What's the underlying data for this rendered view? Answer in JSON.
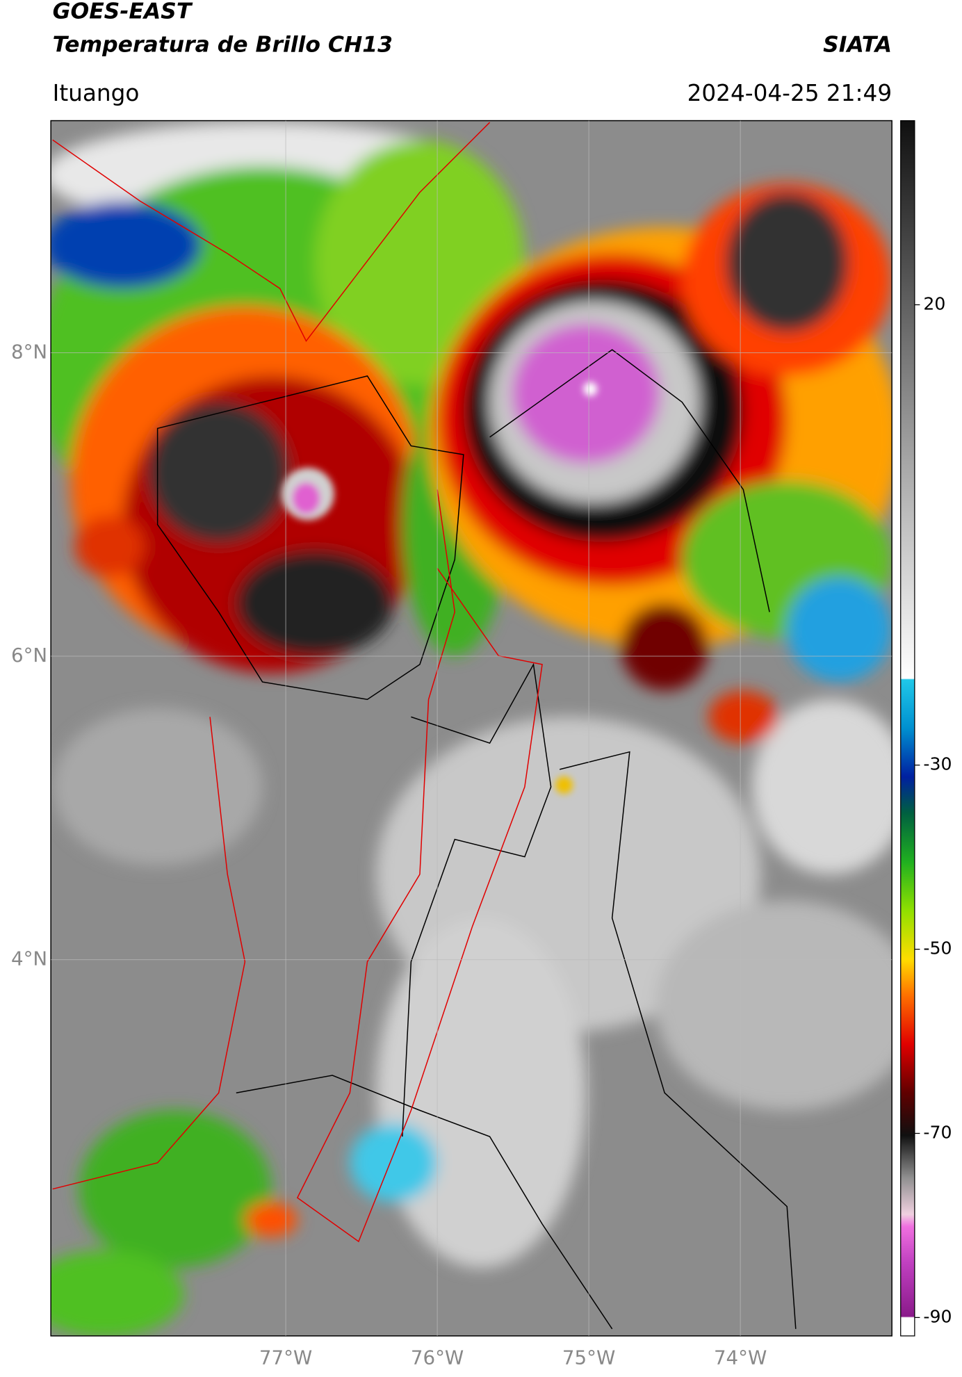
{
  "chart_data": {
    "type": "map",
    "title": "GOES-EAST",
    "subtitle": "Temperatura de Brillo CH13",
    "source": "SIATA",
    "location": "Ituango",
    "datetime": "2024-04-25 21:49",
    "xlim": [
      -78.55,
      -73.0
    ],
    "ylim": [
      1.52,
      9.53
    ],
    "xticks": [
      {
        "value": -77,
        "label": "77°W"
      },
      {
        "value": -76,
        "label": "76°W"
      },
      {
        "value": -75,
        "label": "75°W"
      },
      {
        "value": -74,
        "label": "74°W"
      }
    ],
    "yticks": [
      {
        "value": 8,
        "label": "8°N"
      },
      {
        "value": 6,
        "label": "6°N"
      },
      {
        "value": 4,
        "label": "4°N"
      }
    ],
    "grid": true,
    "colorbar": {
      "lim": [
        -92,
        40
      ],
      "ticks": [
        20,
        -30,
        -50,
        -70,
        -90
      ]
    }
  }
}
